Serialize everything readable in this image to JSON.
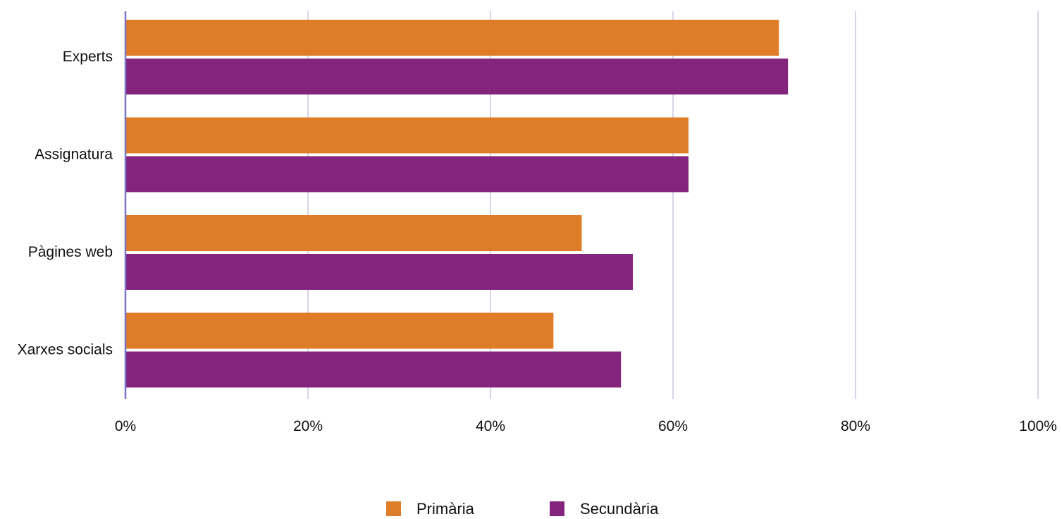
{
  "chart_data": {
    "type": "bar",
    "orientation": "horizontal",
    "categories": [
      "Experts",
      "Assignatura",
      "Pàgines web",
      "Xarxes socials"
    ],
    "series": [
      {
        "name": "Primària",
        "color": "#DF7C27",
        "values": [
          71.6,
          61.7,
          50.0,
          46.9
        ]
      },
      {
        "name": "Secundària",
        "color": "#83257D",
        "values": [
          72.6,
          61.7,
          55.6,
          54.3
        ]
      }
    ],
    "xlim": [
      0,
      100
    ],
    "xticks": [
      {
        "value": 0,
        "label": "0%"
      },
      {
        "value": 20,
        "label": "20%"
      },
      {
        "value": 40,
        "label": "40%"
      },
      {
        "value": 60,
        "label": "60%"
      },
      {
        "value": 80,
        "label": "80%"
      },
      {
        "value": 100,
        "label": "100%"
      }
    ],
    "grid": "vertical",
    "grid_color": "#C9C6E0",
    "axis_color": "#7B74C4",
    "legend": "bottom-center",
    "title": "",
    "xlabel": "",
    "ylabel": ""
  }
}
